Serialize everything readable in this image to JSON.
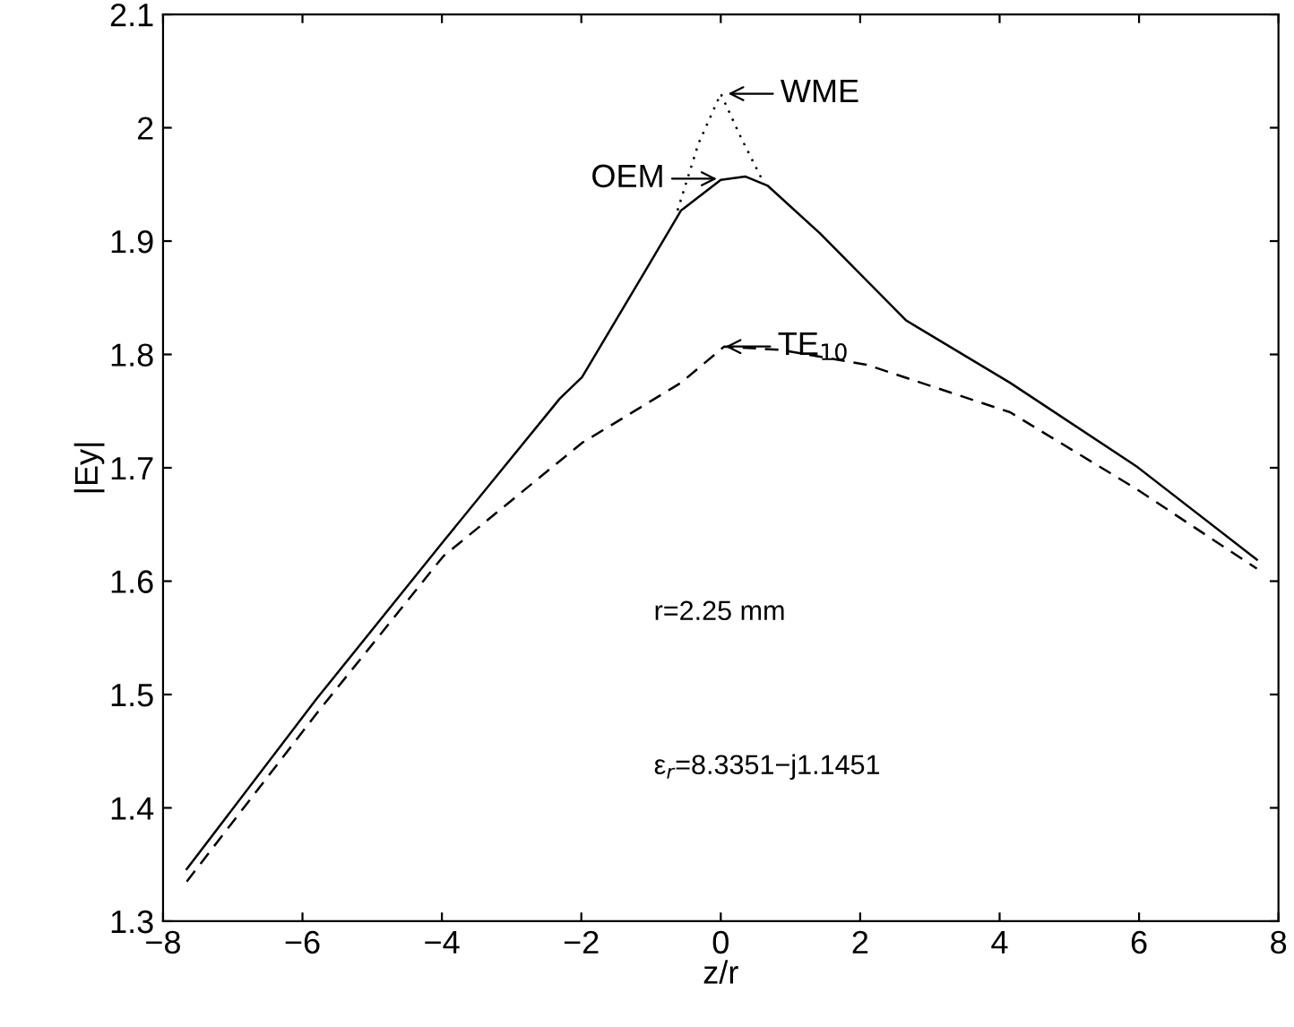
{
  "chart_data": {
    "type": "line",
    "xlabel": "z/r",
    "ylabel": "|Ey|",
    "series": [
      {
        "color": "#000000",
        "line_style": "solid",
        "x": [
          -7.66,
          -5.8,
          -3.98,
          -2.31,
          -1.99,
          -1.07,
          -0.57,
          0,
          0.35,
          0.67,
          1.42,
          2.66,
          4.15,
          5.97,
          7.69
        ],
        "values": [
          1.346,
          1.496,
          1.635,
          1.761,
          1.78,
          1.875,
          1.927,
          1.954,
          1.957,
          1.949,
          1.907,
          1.83,
          1.775,
          1.701,
          1.619
        ]
      },
      {
        "color": "#000000",
        "line_style": "dotted",
        "x": [
          -0.62,
          -0.32,
          0,
          0.3,
          0.62
        ],
        "values": [
          1.927,
          1.986,
          2.03,
          1.99,
          1.951
        ]
      },
      {
        "color": "#000000",
        "line_style": "dashed",
        "x": [
          -7.66,
          -5.8,
          -3.98,
          -1.99,
          -0.57,
          0.05,
          0.85,
          2.09,
          4.15,
          5.97,
          7.69
        ],
        "values": [
          1.335,
          1.483,
          1.622,
          1.722,
          1.775,
          1.807,
          1.804,
          1.791,
          1.749,
          1.681,
          1.611
        ]
      }
    ],
    "annotations": [
      {
        "text": "WME",
        "x": 0.07,
        "y": 2.03
      },
      {
        "text": "OEM",
        "x": -0.02,
        "y": 1.955
      },
      {
        "text": "TE$_{10}$",
        "x": 0.03,
        "y": 1.807
      },
      "r=2.25 mm",
      "ε$_{r}$=8.3351−j1.1451"
    ],
    "xlim": [
      -8,
      8
    ],
    "xticks": [
      {
        "value": -8,
        "label": "−8"
      },
      {
        "value": -6,
        "label": "−6"
      },
      {
        "value": -4,
        "label": "−4"
      },
      {
        "value": -2,
        "label": "−2"
      },
      0,
      2,
      4,
      6,
      8
    ],
    "ylim": [
      1.3,
      2.1
    ],
    "yticks": [
      1.3,
      1.4,
      1.5,
      1.6,
      1.7,
      1.8,
      1.9,
      2,
      2.1
    ],
    "grid": false,
    "legend": false
  }
}
